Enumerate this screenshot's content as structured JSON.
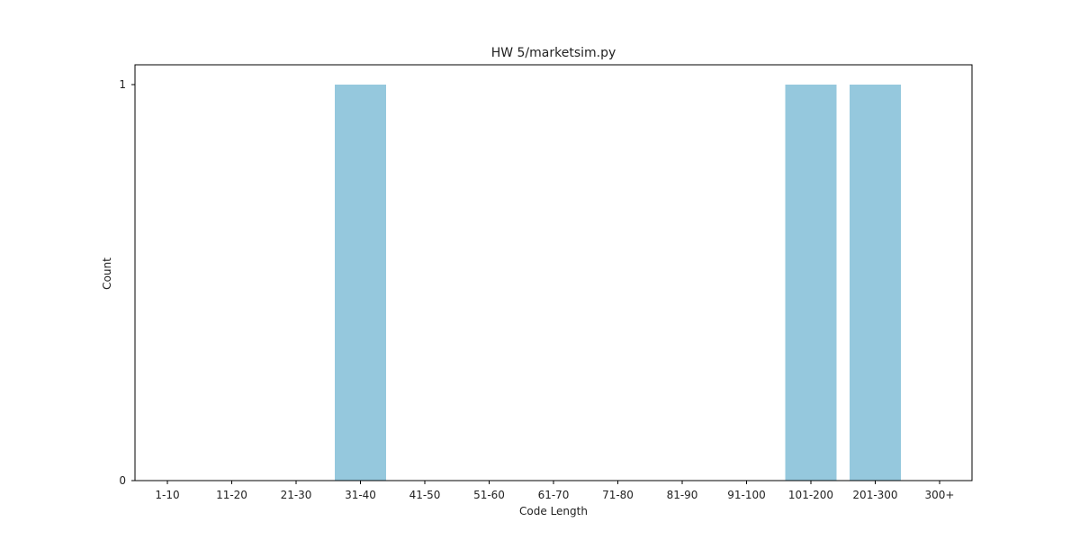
{
  "chart_data": {
    "type": "bar",
    "title": "HW 5/marketsim.py",
    "xlabel": "Code Length",
    "ylabel": "Count",
    "categories": [
      "1-10",
      "11-20",
      "21-30",
      "31-40",
      "41-50",
      "51-60",
      "61-70",
      "71-80",
      "81-90",
      "91-100",
      "101-200",
      "201-300",
      "300+"
    ],
    "values": [
      0,
      0,
      0,
      1,
      0,
      0,
      0,
      0,
      0,
      0,
      1,
      1,
      0
    ],
    "ylim": [
      0,
      1
    ],
    "yticks": [
      0,
      1
    ],
    "grid": false,
    "bar_color": "#95c8dd"
  }
}
